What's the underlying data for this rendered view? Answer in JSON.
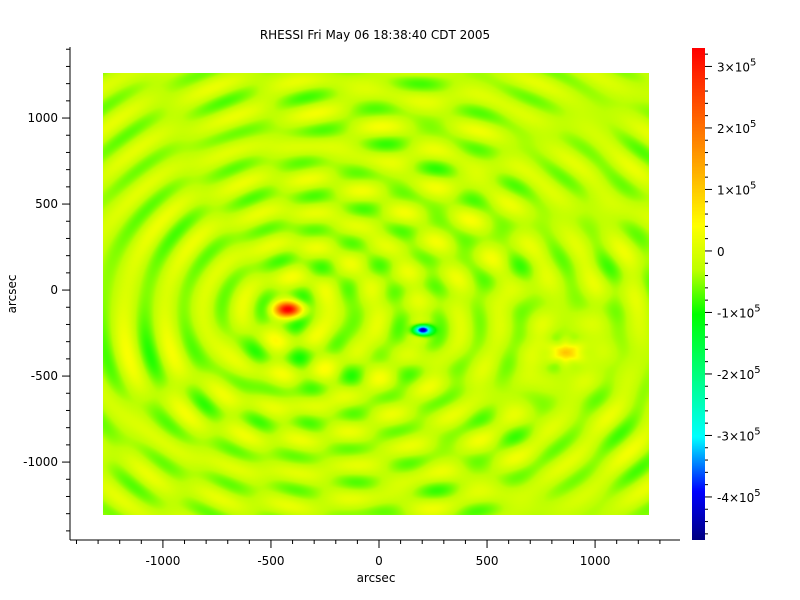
{
  "chart_data": {
    "type": "heatmap",
    "title": "RHESSI Fri May 06 18:38:40 CDT 2005",
    "xlabel": "arcsec",
    "ylabel": "arcsec",
    "xlim": [
      -1430,
      1393
    ],
    "ylim": [
      -1453,
      1413
    ],
    "x_ticks": [
      -1000,
      -500,
      0,
      500,
      1000
    ],
    "y_ticks": [
      -1000,
      -500,
      0,
      500,
      1000
    ],
    "x_tick_labels": [
      "-1000",
      "-500",
      "0",
      "500",
      "1000"
    ],
    "y_tick_labels": [
      "-1000",
      "-500",
      "0",
      "500",
      "1000"
    ],
    "minor_tick_step": 100,
    "image_extent": {
      "x": [
        -1278,
        1250
      ],
      "y": [
        -1308,
        1262
      ]
    },
    "grid": false,
    "colormap": "rainbow",
    "colorbar": {
      "range": [
        -470000,
        330000
      ],
      "ticks": [
        300000,
        200000,
        100000,
        0,
        -100000,
        -200000,
        -300000,
        -400000
      ],
      "tick_labels": [
        {
          "mant": "3×10",
          "exp": "5"
        },
        {
          "mant": "2×10",
          "exp": "5"
        },
        {
          "mant": "1×10",
          "exp": "5"
        },
        {
          "mant": "0",
          "exp": ""
        },
        {
          "mant": "-1×10",
          "exp": "5"
        },
        {
          "mant": "-2×10",
          "exp": "5"
        },
        {
          "mant": "-3×10",
          "exp": "5"
        },
        {
          "mant": "-4×10",
          "exp": "5"
        }
      ],
      "position": "right"
    },
    "sources": [
      {
        "x": -420,
        "y": -110,
        "value": 320000
      },
      {
        "x": 860,
        "y": -360,
        "value": 130000
      },
      {
        "x": 200,
        "y": -230,
        "value": -460000
      }
    ],
    "colors": {
      "min": "#000080",
      "blue": "#0000ff",
      "cyan": "#00ffff",
      "green": "#00ff00",
      "yellow": "#ffff00",
      "orange": "#ff8000",
      "max": "#ff0000"
    }
  }
}
